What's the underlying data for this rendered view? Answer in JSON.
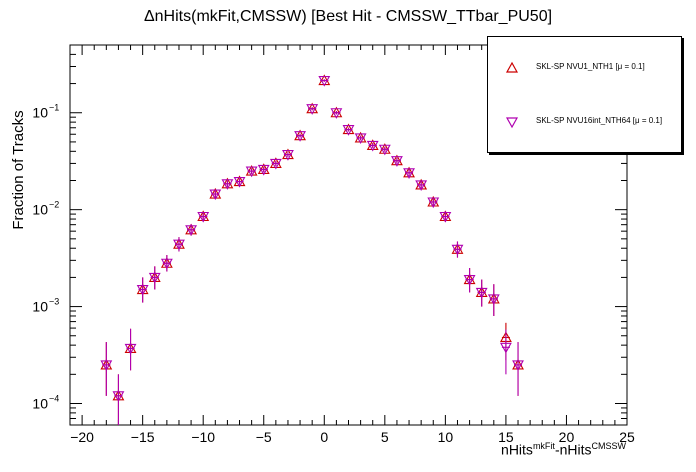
{
  "chart_data": {
    "type": "scatter",
    "title": "ΔnHits(mkFit,CMSSW) [Best Hit - CMSSW_TTbar_PU50]",
    "ylabel": "Fraction of Tracks",
    "xlabel_main": "nHits",
    "xlabel_sup1": "mkFit",
    "xlabel_mid": "-nHits",
    "xlabel_sup2": "CMSSW",
    "xlim": [
      -21,
      25
    ],
    "ylim": [
      6e-05,
      0.5
    ],
    "yscale": "log",
    "x_ticks": [
      "−20",
      "−15",
      "−10",
      "−5",
      "0",
      "5",
      "10",
      "15",
      "20",
      "25"
    ],
    "y_ticks": [
      "10",
      "10",
      "10",
      "10"
    ],
    "y_tick_exps": [
      "−4",
      "−3",
      "−2",
      "−1"
    ],
    "legend_position": "top-right",
    "series": [
      {
        "name": "SKL-SP NVU1_NTH1 [μ =  0.1]",
        "marker": "triangle-up",
        "color": "#cc0000",
        "x": [
          -18,
          -17,
          -16,
          -15,
          -14,
          -13,
          -12,
          -11,
          -10,
          -9,
          -8,
          -7,
          -6,
          -5,
          -4,
          -3,
          -2,
          -1,
          0,
          1,
          2,
          3,
          4,
          5,
          6,
          7,
          8,
          9,
          10,
          11,
          12,
          13,
          14,
          15,
          16
        ],
        "y": [
          0.00025,
          0.00012,
          0.00037,
          0.0015,
          0.002,
          0.0028,
          0.0044,
          0.0062,
          0.0085,
          0.0145,
          0.0185,
          0.0195,
          0.025,
          0.026,
          0.03,
          0.037,
          0.058,
          0.11,
          0.215,
          0.1,
          0.067,
          0.055,
          0.046,
          0.042,
          0.032,
          0.024,
          0.018,
          0.012,
          0.0085,
          0.0039,
          0.0019,
          0.0014,
          0.0012,
          0.00048,
          0.00025
        ],
        "err_lo": [
          0.00013,
          6e-05,
          0.00015,
          0.0004,
          0.0005,
          0.0005,
          0.0007,
          0.0008,
          0.0009,
          0.0012,
          0.0013,
          0.0014,
          0.0016,
          0.0016,
          0.0017,
          0.002,
          0.0025,
          0.004,
          0.006,
          0.004,
          0.003,
          0.003,
          0.0025,
          0.0023,
          0.002,
          0.0018,
          0.0015,
          0.0012,
          0.001,
          0.0007,
          0.0005,
          0.0004,
          0.0004,
          0.0002,
          0.00013
        ],
        "err_hi": [
          0.00018,
          8e-05,
          0.00022,
          0.0005,
          0.0006,
          0.0006,
          0.0008,
          0.0009,
          0.001,
          0.0013,
          0.0014,
          0.0015,
          0.0017,
          0.0017,
          0.0018,
          0.0021,
          0.0026,
          0.004,
          0.006,
          0.004,
          0.003,
          0.003,
          0.0026,
          0.0024,
          0.0021,
          0.0019,
          0.0016,
          0.0013,
          0.0011,
          0.0008,
          0.0006,
          0.0005,
          0.0005,
          0.0002,
          0.00018
        ]
      },
      {
        "name": "SKL-SP NVU16int_NTH64 [μ =  0.1]",
        "marker": "triangle-down",
        "color": "#b000b0",
        "x": [
          -18,
          -17,
          -16,
          -15,
          -14,
          -13,
          -12,
          -11,
          -10,
          -9,
          -8,
          -7,
          -6,
          -5,
          -4,
          -3,
          -2,
          -1,
          0,
          1,
          2,
          3,
          4,
          5,
          6,
          7,
          8,
          9,
          10,
          11,
          12,
          13,
          14,
          15,
          16
        ],
        "y": [
          0.00025,
          0.00012,
          0.00037,
          0.0015,
          0.002,
          0.0028,
          0.0044,
          0.0062,
          0.0085,
          0.0145,
          0.0185,
          0.0195,
          0.025,
          0.026,
          0.03,
          0.037,
          0.058,
          0.11,
          0.215,
          0.1,
          0.067,
          0.055,
          0.046,
          0.042,
          0.032,
          0.024,
          0.018,
          0.012,
          0.0085,
          0.0039,
          0.0019,
          0.0014,
          0.0012,
          0.00038,
          0.00025
        ],
        "err_lo": [
          0.00013,
          6e-05,
          0.00015,
          0.0004,
          0.0005,
          0.0005,
          0.0007,
          0.0008,
          0.0009,
          0.0012,
          0.0013,
          0.0014,
          0.0016,
          0.0016,
          0.0017,
          0.002,
          0.0025,
          0.004,
          0.006,
          0.004,
          0.003,
          0.003,
          0.0025,
          0.0023,
          0.002,
          0.0018,
          0.0015,
          0.0012,
          0.001,
          0.0007,
          0.0005,
          0.0004,
          0.0004,
          0.00018,
          0.00013
        ],
        "err_hi": [
          0.00018,
          8e-05,
          0.00022,
          0.0005,
          0.0006,
          0.0006,
          0.0008,
          0.0009,
          0.001,
          0.0013,
          0.0014,
          0.0015,
          0.0017,
          0.0017,
          0.0018,
          0.0021,
          0.0026,
          0.004,
          0.006,
          0.004,
          0.003,
          0.003,
          0.0026,
          0.0024,
          0.0021,
          0.0019,
          0.0016,
          0.0013,
          0.0011,
          0.0008,
          0.0006,
          0.0005,
          0.0005,
          0.0002,
          0.00018
        ]
      }
    ]
  }
}
